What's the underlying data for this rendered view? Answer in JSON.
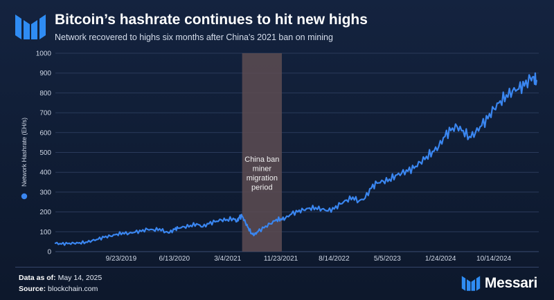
{
  "header": {
    "title": "Bitcoin’s hashrate continues to hit new highs",
    "subtitle": "Network recovered to highs six months after China's 2021 ban on mining",
    "logo_icon": "messari-logo-icon"
  },
  "footer": {
    "data_as_of_label": "Data as of:",
    "data_as_of_value": "May 14, 2025",
    "source_label": "Source:",
    "source_value": "blockchain.com",
    "brand_name": "Messari"
  },
  "colors": {
    "line": "#3a86f0",
    "band": "#5d4c52",
    "grid": "#2b3b5b",
    "axis_text": "#d0d8e6"
  },
  "chart_data": {
    "type": "line",
    "title": "Bitcoin’s hashrate continues to hit new highs",
    "ylabel": "Network Hashrate (EH/s)",
    "ylim": [
      0,
      1000
    ],
    "yticks": [
      0,
      100,
      200,
      300,
      400,
      500,
      600,
      700,
      800,
      900,
      1000
    ],
    "xlim": [
      "2018-11-01",
      "2025-05-25"
    ],
    "xtick_labels": [
      "9/23/2019",
      "6/13/2020",
      "3/4/2021",
      "11/23/2021",
      "8/14/2022",
      "5/5/2023",
      "1/24/2024",
      "10/14/2024"
    ],
    "xtick_dates": [
      "2019-09-23",
      "2020-06-13",
      "2021-03-04",
      "2021-11-23",
      "2022-08-14",
      "2023-05-05",
      "2024-01-24",
      "2024-10-14"
    ],
    "grid": "horizontal",
    "legend": "left of y-axis label",
    "annotation": {
      "text_lines": [
        "China ban",
        "miner",
        "migration",
        "period"
      ],
      "start": "2021-05-15",
      "end": "2021-11-28"
    },
    "series": [
      {
        "name": "Network Hashrate (EH/s)",
        "points": [
          [
            "2018-11-01",
            42
          ],
          [
            "2018-12-01",
            38
          ],
          [
            "2019-01-01",
            40
          ],
          [
            "2019-02-01",
            42
          ],
          [
            "2019-03-01",
            45
          ],
          [
            "2019-04-01",
            48
          ],
          [
            "2019-05-01",
            55
          ],
          [
            "2019-06-01",
            62
          ],
          [
            "2019-07-01",
            72
          ],
          [
            "2019-08-01",
            78
          ],
          [
            "2019-09-01",
            88
          ],
          [
            "2019-10-01",
            95
          ],
          [
            "2019-11-01",
            92
          ],
          [
            "2019-12-01",
            98
          ],
          [
            "2020-01-01",
            102
          ],
          [
            "2020-02-01",
            112
          ],
          [
            "2020-03-01",
            110
          ],
          [
            "2020-04-01",
            115
          ],
          [
            "2020-05-01",
            100
          ],
          [
            "2020-05-20",
            95
          ],
          [
            "2020-06-15",
            112
          ],
          [
            "2020-07-01",
            118
          ],
          [
            "2020-08-01",
            125
          ],
          [
            "2020-09-01",
            132
          ],
          [
            "2020-10-01",
            140
          ],
          [
            "2020-11-01",
            125
          ],
          [
            "2020-12-01",
            140
          ],
          [
            "2021-01-01",
            150
          ],
          [
            "2021-02-01",
            160
          ],
          [
            "2021-03-01",
            162
          ],
          [
            "2021-04-01",
            168
          ],
          [
            "2021-04-20",
            152
          ],
          [
            "2021-05-01",
            172
          ],
          [
            "2021-05-15",
            178
          ],
          [
            "2021-06-01",
            145
          ],
          [
            "2021-06-15",
            120
          ],
          [
            "2021-07-01",
            92
          ],
          [
            "2021-07-15",
            85
          ],
          [
            "2021-08-01",
            100
          ],
          [
            "2021-09-01",
            120
          ],
          [
            "2021-10-01",
            140
          ],
          [
            "2021-11-01",
            162
          ],
          [
            "2021-11-23",
            165
          ],
          [
            "2021-12-15",
            168
          ],
          [
            "2022-01-15",
            190
          ],
          [
            "2022-02-15",
            200
          ],
          [
            "2022-03-15",
            210
          ],
          [
            "2022-04-15",
            220
          ],
          [
            "2022-05-15",
            222
          ],
          [
            "2022-06-15",
            215
          ],
          [
            "2022-07-15",
            205
          ],
          [
            "2022-08-15",
            215
          ],
          [
            "2022-09-15",
            240
          ],
          [
            "2022-10-15",
            260
          ],
          [
            "2022-11-15",
            275
          ],
          [
            "2022-12-15",
            255
          ],
          [
            "2023-01-15",
            270
          ],
          [
            "2023-02-15",
            320
          ],
          [
            "2023-03-15",
            345
          ],
          [
            "2023-04-15",
            355
          ],
          [
            "2023-05-15",
            365
          ],
          [
            "2023-06-15",
            385
          ],
          [
            "2023-07-15",
            395
          ],
          [
            "2023-08-15",
            405
          ],
          [
            "2023-09-15",
            420
          ],
          [
            "2023-10-15",
            450
          ],
          [
            "2023-11-15",
            480
          ],
          [
            "2023-12-15",
            505
          ],
          [
            "2024-01-15",
            530
          ],
          [
            "2024-02-15",
            580
          ],
          [
            "2024-03-15",
            610
          ],
          [
            "2024-04-15",
            630
          ],
          [
            "2024-05-15",
            610
          ],
          [
            "2024-06-15",
            580
          ],
          [
            "2024-07-15",
            600
          ],
          [
            "2024-08-15",
            635
          ],
          [
            "2024-09-15",
            670
          ],
          [
            "2024-10-15",
            720
          ],
          [
            "2024-11-15",
            760
          ],
          [
            "2024-12-15",
            790
          ],
          [
            "2025-01-15",
            810
          ],
          [
            "2025-02-15",
            820
          ],
          [
            "2025-03-15",
            835
          ],
          [
            "2025-04-15",
            870
          ],
          [
            "2025-05-01",
            880
          ],
          [
            "2025-05-14",
            862
          ]
        ]
      }
    ]
  }
}
